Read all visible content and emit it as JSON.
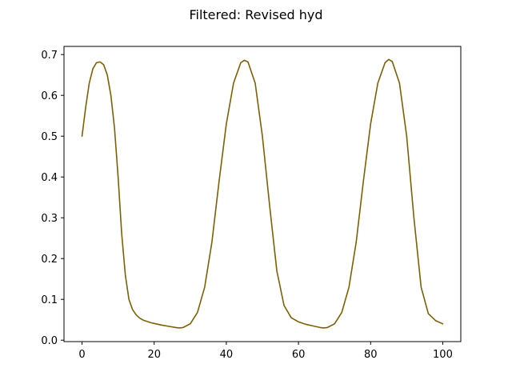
{
  "chart_data": {
    "type": "line",
    "title": "Filtered: Revised hyd",
    "xlabel": "",
    "ylabel": "",
    "xlim": [
      -5,
      105
    ],
    "ylim": [
      -0.0035,
      0.72
    ],
    "xticks": [
      0,
      20,
      40,
      60,
      80,
      100
    ],
    "yticks": [
      0.0,
      0.1,
      0.2,
      0.3,
      0.4,
      0.5,
      0.6,
      0.7
    ],
    "ytick_labels": [
      "0.0",
      "0.1",
      "0.2",
      "0.3",
      "0.4",
      "0.5",
      "0.6",
      "0.7"
    ],
    "grid": false,
    "series": [
      {
        "color": "#7f6000",
        "x": [
          0,
          1,
          2,
          3,
          4,
          5,
          6,
          7,
          8,
          9,
          10,
          11,
          12,
          13,
          14,
          15,
          16,
          17,
          18,
          19,
          20,
          22,
          24,
          26,
          27,
          28,
          30,
          32,
          34,
          36,
          38,
          40,
          42,
          44,
          45,
          46,
          48,
          50,
          52,
          54,
          56,
          58,
          60,
          62,
          64,
          66,
          67,
          68,
          70,
          72,
          74,
          76,
          78,
          80,
          82,
          84,
          85,
          86,
          88,
          90,
          92,
          94,
          96,
          98,
          100
        ],
        "y": [
          0.5,
          0.57,
          0.63,
          0.665,
          0.68,
          0.682,
          0.675,
          0.65,
          0.6,
          0.52,
          0.4,
          0.26,
          0.16,
          0.1,
          0.075,
          0.062,
          0.054,
          0.049,
          0.046,
          0.043,
          0.041,
          0.037,
          0.034,
          0.031,
          0.03,
          0.031,
          0.04,
          0.068,
          0.13,
          0.24,
          0.39,
          0.53,
          0.63,
          0.68,
          0.686,
          0.682,
          0.63,
          0.5,
          0.33,
          0.17,
          0.085,
          0.055,
          0.045,
          0.039,
          0.035,
          0.031,
          0.03,
          0.031,
          0.04,
          0.068,
          0.13,
          0.24,
          0.39,
          0.53,
          0.63,
          0.68,
          0.688,
          0.683,
          0.63,
          0.5,
          0.3,
          0.13,
          0.065,
          0.048,
          0.04
        ]
      }
    ]
  }
}
